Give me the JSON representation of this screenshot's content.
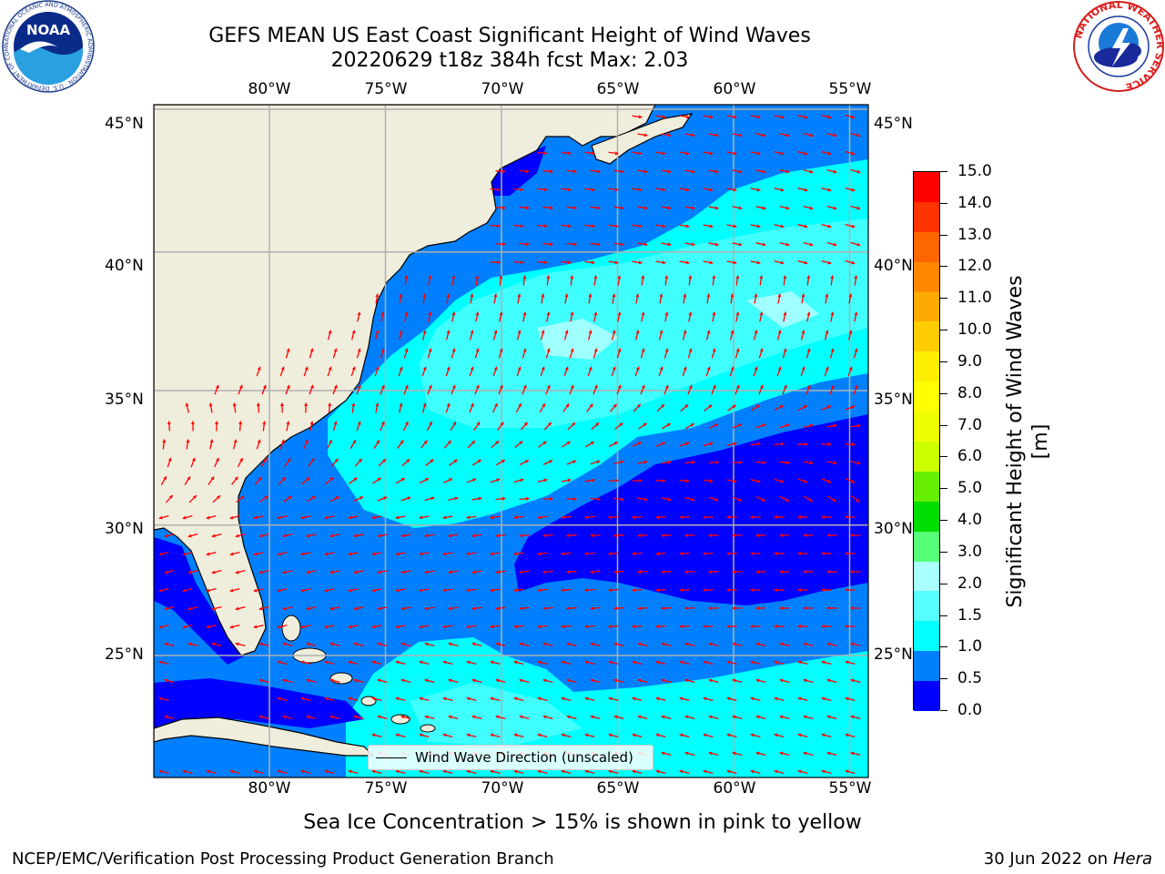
{
  "header": {
    "title_line1": "GEFS MEAN US East Coast Significant Height of Wind Waves",
    "title_line2": "20220629 t18z 384h fcst   Max: 2.03",
    "noaa_logo_text": "NOAA",
    "noaa_ring_text": "NATIONAL OCEANIC AND ATMOSPHERIC ADMINISTRATION · U.S. DEPARTMENT OF COMMERCE",
    "nws_ring_text": "NATIONAL WEATHER SERVICE"
  },
  "map": {
    "lon_labels": [
      "80°W",
      "75°W",
      "70°W",
      "65°W",
      "60°W",
      "55°W"
    ],
    "lat_labels": [
      "45°N",
      "40°N",
      "35°N",
      "30°N",
      "25°N"
    ],
    "legend_label": "Wind Wave Direction (unscaled)",
    "colors": {
      "land": "#efeddc",
      "ocean_0_05": "#0000ff",
      "ocean_05_1": "#0080ff",
      "ocean_1_15": "#00ffff",
      "ocean_15_2": "#40ffff",
      "ocean_2_3": "#a0ffff",
      "arrow": "#ff0000",
      "grid": "#b0b0b0"
    }
  },
  "colorbar": {
    "title": "Significant Height of Wind Waves [m]",
    "ticks": [
      "15.0",
      "14.0",
      "13.0",
      "12.0",
      "11.0",
      "10.0",
      "9.0",
      "8.0",
      "7.0",
      "6.0",
      "5.0",
      "4.0",
      "3.0",
      "2.0",
      "1.5",
      "1.0",
      "0.5",
      "0.0"
    ],
    "colors_top_to_bottom": [
      "#ff0000",
      "#ff3300",
      "#ff6600",
      "#ff8800",
      "#ffaa00",
      "#ffcc00",
      "#ffee00",
      "#ffff00",
      "#eeff00",
      "#ccff00",
      "#66ee00",
      "#00dd00",
      "#55ff77",
      "#aaffff",
      "#55ffff",
      "#00ffff",
      "#0080ff",
      "#0000ff"
    ]
  },
  "footer": {
    "sea_ice_note": "Sea Ice Concentration > 15% is shown in pink to yellow",
    "left": "NCEP/EMC/Verification Post Processing Product Generation Branch",
    "right_date": "30 Jun 2022 on",
    "right_machine": "Hera"
  }
}
